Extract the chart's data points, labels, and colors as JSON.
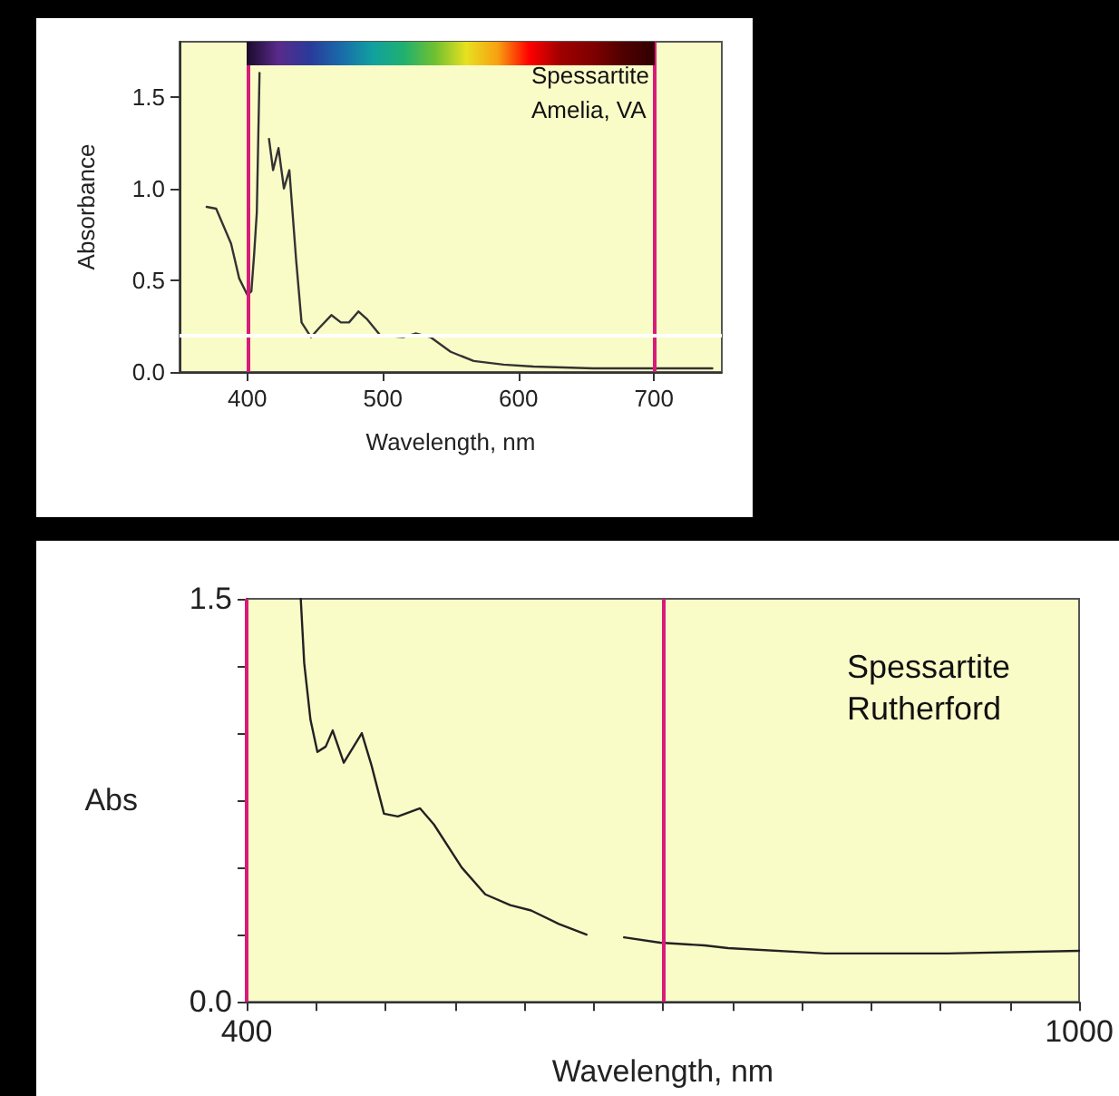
{
  "chart_data": [
    {
      "type": "line",
      "xlabel": "Wavelength, nm",
      "ylabel": "Absorbance",
      "annotations": [
        "Spessartite\nAmelia, VA"
      ],
      "marker": "none",
      "line_style": "solid",
      "grid": false,
      "xlim": [
        350,
        750
      ],
      "xticks": [
        400,
        500,
        600,
        700
      ],
      "ylim": [
        0,
        1.8
      ],
      "yticks": [
        {
          "value": 0,
          "label": "0.0"
        },
        {
          "value": 0.5,
          "label": "0.5"
        },
        {
          "value": 1,
          "label": "1.0"
        },
        {
          "value": 1.5,
          "label": "1.5"
        }
      ],
      "ref_lines": [
        {
          "axis": "x",
          "value": 400,
          "color": "#d81b7a"
        },
        {
          "axis": "x",
          "value": 700,
          "color": "#d81b7a"
        },
        {
          "axis": "y",
          "value": 0.2,
          "color": "#ffffff"
        }
      ],
      "series": [
        {
          "color": "#333333",
          "x": [
            370,
            377,
            388,
            394,
            400,
            403,
            405,
            407,
            409,
            412,
            416,
            419,
            423,
            427,
            431,
            436,
            440,
            447,
            453,
            462,
            469,
            475,
            482,
            488,
            498,
            515,
            524,
            535,
            550,
            567,
            589,
            611,
            655,
            743
          ],
          "values": [
            0.9,
            0.89,
            0.7,
            0.51,
            0.42,
            0.44,
            0.64,
            0.87,
            1.63,
            null,
            1.27,
            1.1,
            1.22,
            1.0,
            1.1,
            0.61,
            0.27,
            0.19,
            0.24,
            0.31,
            0.27,
            0.27,
            0.33,
            0.29,
            0.2,
            0.19,
            0.21,
            0.19,
            0.11,
            0.06,
            0.04,
            0.03,
            0.02,
            0.02
          ]
        }
      ]
    },
    {
      "type": "line",
      "xlabel": "Wavelength, nm",
      "ylabel": "Abs",
      "annotations": [
        "Spessartite\nRutherford"
      ],
      "marker": "none",
      "line_style": "solid",
      "grid": false,
      "xlim": [
        400,
        1000
      ],
      "xticks": [
        400,
        {
          "value": 450,
          "label": null
        },
        {
          "value": 500,
          "label": null
        },
        {
          "value": 550,
          "label": null
        },
        {
          "value": 600,
          "label": null
        },
        {
          "value": 650,
          "label": null
        },
        {
          "value": 700,
          "label": null
        },
        {
          "value": 750,
          "label": null
        },
        {
          "value": 800,
          "label": null
        },
        {
          "value": 850,
          "label": null
        },
        {
          "value": 900,
          "label": null
        },
        {
          "value": 950,
          "label": null
        },
        1000
      ],
      "ylim": [
        0,
        1.5
      ],
      "yticks": [
        {
          "value": 0,
          "label": "0.0"
        },
        {
          "value": 0.25,
          "label": null
        },
        {
          "value": 0.5,
          "label": null
        },
        {
          "value": 0.75,
          "label": null
        },
        {
          "value": 1,
          "label": null
        },
        {
          "value": 1.25,
          "label": null
        },
        {
          "value": 1.5,
          "label": "1.5"
        }
      ],
      "ref_lines": [
        {
          "axis": "x",
          "value": 400,
          "color": "#d81b7a"
        },
        {
          "axis": "x",
          "value": 700,
          "color": "#d81b7a"
        }
      ],
      "series": [
        {
          "color": "#222222",
          "x": [
            439,
            441.5,
            446,
            451,
            457,
            462,
            470,
            483,
            490,
            499,
            509,
            525,
            535,
            555,
            572,
            590,
            605,
            625,
            645,
            658,
            672,
            698,
            730,
            747,
            817,
            905,
            1000
          ],
          "values": [
            1.5,
            1.26,
            1.05,
            0.93,
            0.95,
            1.01,
            0.89,
            1.0,
            0.88,
            0.7,
            0.69,
            0.72,
            0.66,
            0.5,
            0.4,
            0.36,
            0.34,
            0.29,
            0.25,
            null,
            0.24,
            0.22,
            0.21,
            0.2,
            0.18,
            0.18,
            0.19
          ]
        }
      ]
    }
  ]
}
